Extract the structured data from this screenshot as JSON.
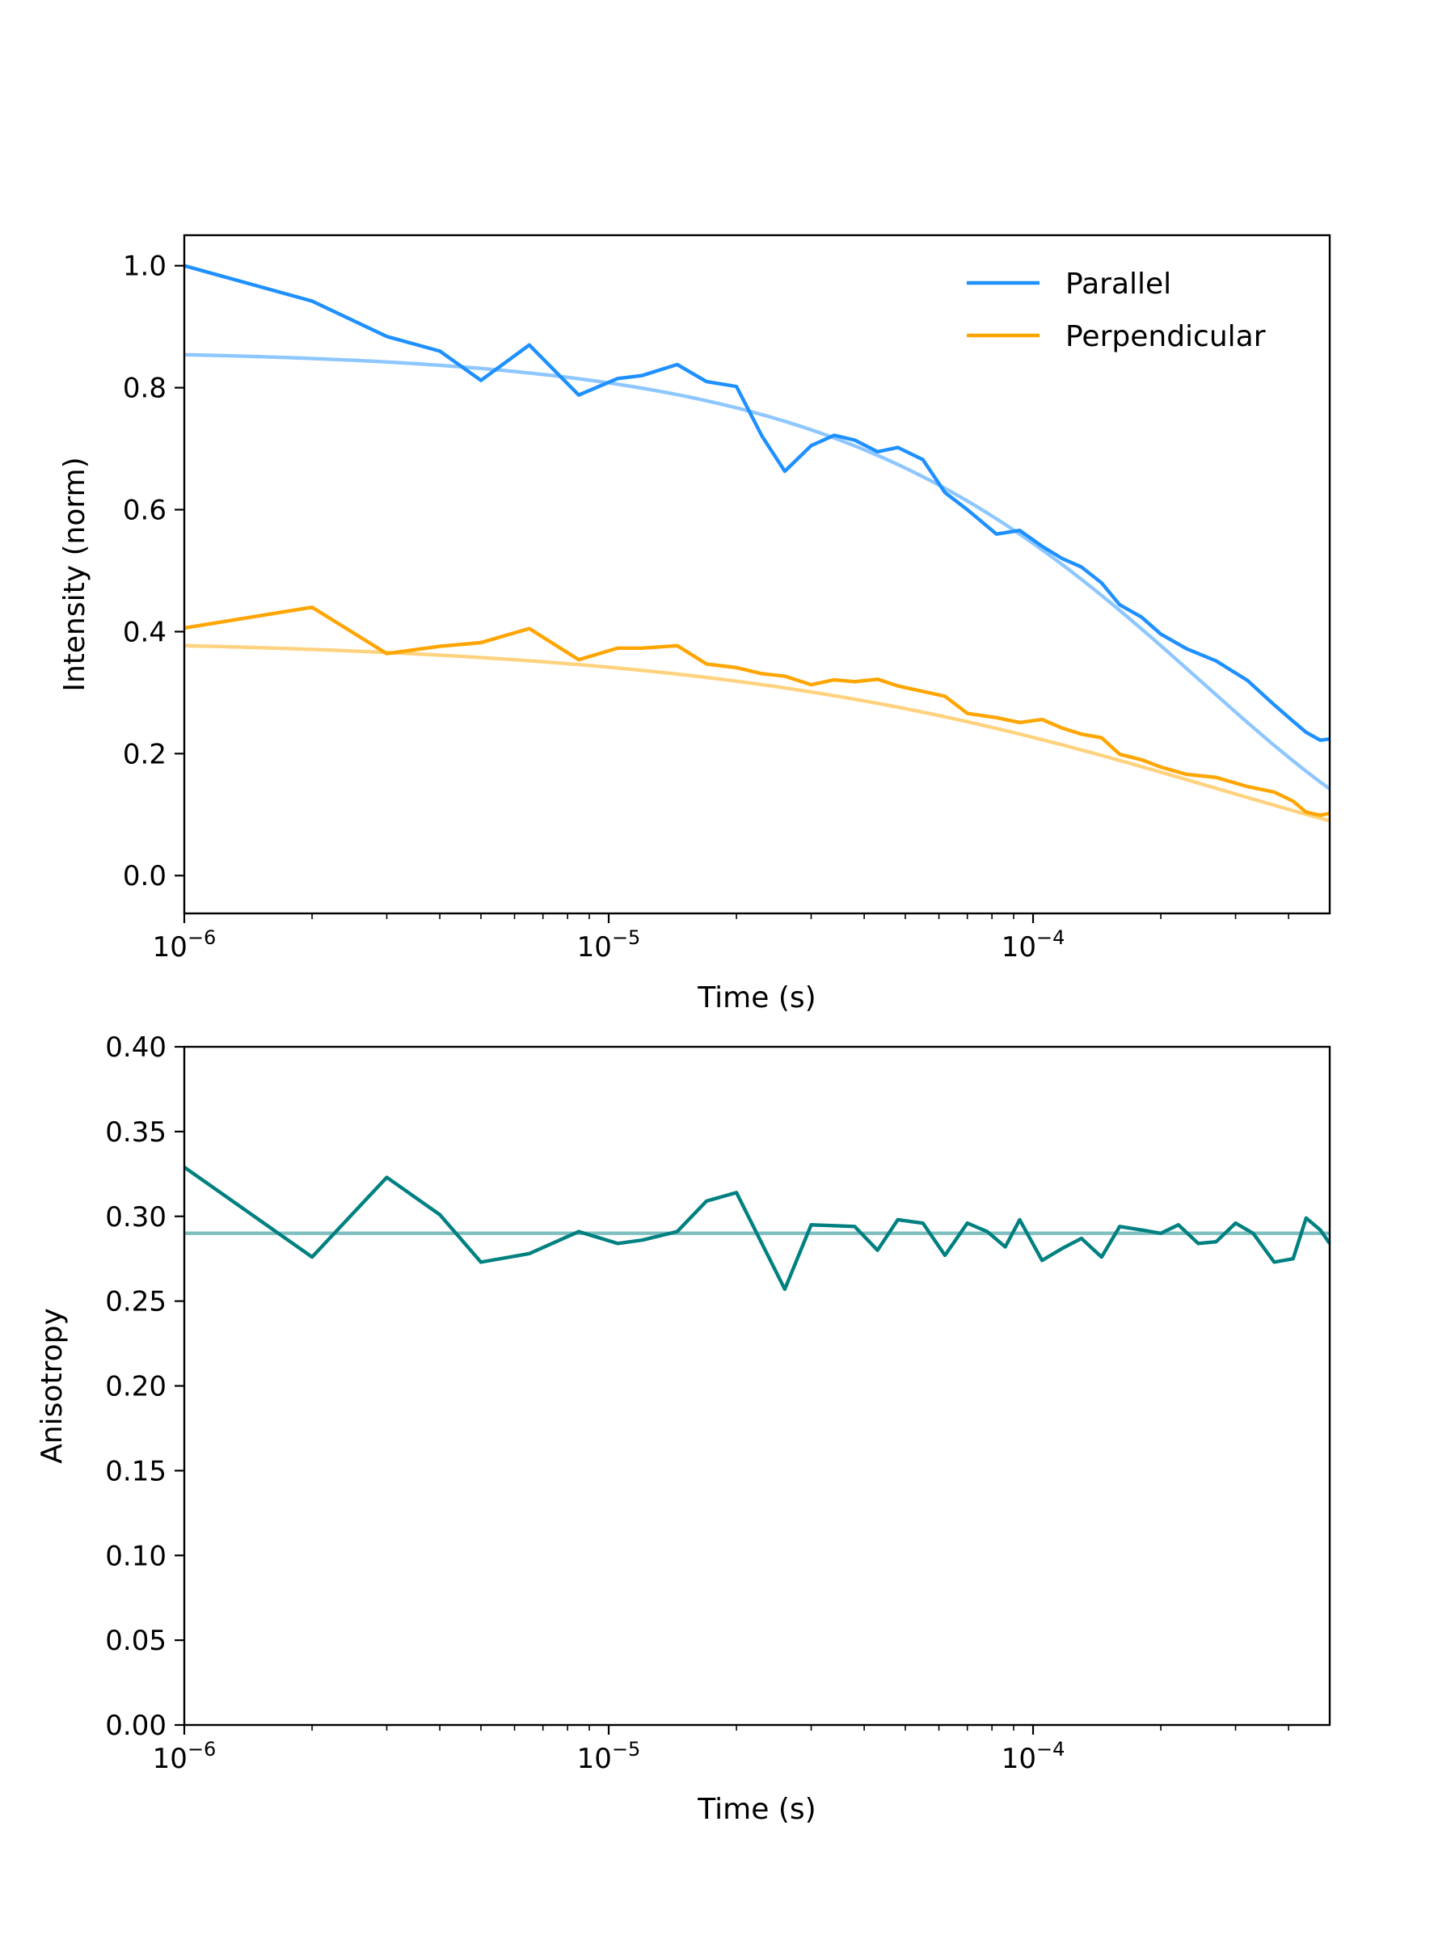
{
  "colors": {
    "parallel": "#1e90ff",
    "perpendicular": "#ffa500",
    "anisotropy": "#008080"
  },
  "chart_data": [
    {
      "type": "line",
      "xlabel": "Time (s)",
      "ylabel": "Intensity (norm)",
      "xscale": "log",
      "xlim": [
        1e-06,
        0.0005
      ],
      "ylim": [
        -0.062,
        1.05
      ],
      "grid": false,
      "legend": {
        "position": "top-right",
        "entries": [
          "Parallel",
          "Perpendicular"
        ]
      },
      "xticks": [
        {
          "value": 1e-06,
          "base": "10",
          "exp": "−6"
        },
        {
          "value": 1e-05,
          "base": "10",
          "exp": "−5"
        },
        {
          "value": 0.0001,
          "base": "10",
          "exp": "−4"
        }
      ],
      "yticks": [
        {
          "value": 0.0,
          "label": "0.0"
        },
        {
          "value": 0.2,
          "label": "0.2"
        },
        {
          "value": 0.4,
          "label": "0.4"
        },
        {
          "value": 0.6,
          "label": "0.6"
        },
        {
          "value": 0.8,
          "label": "0.8"
        },
        {
          "value": 1.0,
          "label": "1.0"
        }
      ],
      "series": [
        {
          "name": "Parallel",
          "color": "#1e90ff",
          "points": [
            [
              1e-06,
              1.0
            ],
            [
              2e-06,
              0.942
            ],
            [
              3e-06,
              0.884
            ],
            [
              4e-06,
              0.86
            ],
            [
              5e-06,
              0.812
            ],
            [
              6.5e-06,
              0.87
            ],
            [
              8.5e-06,
              0.788
            ],
            [
              1.05e-05,
              0.815
            ],
            [
              1.2e-05,
              0.82
            ],
            [
              1.45e-05,
              0.838
            ],
            [
              1.7e-05,
              0.81
            ],
            [
              2e-05,
              0.802
            ],
            [
              2.3e-05,
              0.72
            ],
            [
              2.6e-05,
              0.663
            ],
            [
              3e-05,
              0.705
            ],
            [
              3.4e-05,
              0.722
            ],
            [
              3.8e-05,
              0.714
            ],
            [
              4.3e-05,
              0.695
            ],
            [
              4.8e-05,
              0.702
            ],
            [
              5.5e-05,
              0.682
            ],
            [
              6.2e-05,
              0.628
            ],
            [
              7e-05,
              0.6
            ],
            [
              8.2e-05,
              0.56
            ],
            [
              9.3e-05,
              0.566
            ],
            [
              0.000105,
              0.54
            ],
            [
              0.000117,
              0.52
            ],
            [
              0.00013,
              0.506
            ],
            [
              0.000145,
              0.48
            ],
            [
              0.00016,
              0.444
            ],
            [
              0.00018,
              0.424
            ],
            [
              0.0002,
              0.396
            ],
            [
              0.00023,
              0.372
            ],
            [
              0.00027,
              0.352
            ],
            [
              0.00032,
              0.32
            ],
            [
              0.00037,
              0.28
            ],
            [
              0.00041,
              0.253
            ],
            [
              0.00044,
              0.235
            ],
            [
              0.000475,
              0.222
            ],
            [
              0.0005,
              0.224
            ]
          ],
          "fit": {
            "amplitude": 0.862,
            "tau": 0.00025,
            "beta": 0.85
          }
        },
        {
          "name": "Perpendicular",
          "color": "#ffa500",
          "points": [
            [
              1e-06,
              0.406
            ],
            [
              2e-06,
              0.44
            ],
            [
              3e-06,
              0.364
            ],
            [
              4e-06,
              0.376
            ],
            [
              5e-06,
              0.382
            ],
            [
              6.5e-06,
              0.405
            ],
            [
              8.5e-06,
              0.354
            ],
            [
              1.05e-05,
              0.373
            ],
            [
              1.2e-05,
              0.373
            ],
            [
              1.45e-05,
              0.377
            ],
            [
              1.7e-05,
              0.347
            ],
            [
              2e-05,
              0.341
            ],
            [
              2.3e-05,
              0.331
            ],
            [
              2.6e-05,
              0.327
            ],
            [
              3e-05,
              0.313
            ],
            [
              3.4e-05,
              0.321
            ],
            [
              3.8e-05,
              0.318
            ],
            [
              4.3e-05,
              0.322
            ],
            [
              4.8e-05,
              0.311
            ],
            [
              5.5e-05,
              0.302
            ],
            [
              6.2e-05,
              0.294
            ],
            [
              7e-05,
              0.266
            ],
            [
              8.2e-05,
              0.259
            ],
            [
              9.3e-05,
              0.251
            ],
            [
              0.000105,
              0.256
            ],
            [
              0.000117,
              0.242
            ],
            [
              0.00013,
              0.232
            ],
            [
              0.000145,
              0.226
            ],
            [
              0.00016,
              0.199
            ],
            [
              0.00018,
              0.19
            ],
            [
              0.0002,
              0.178
            ],
            [
              0.00023,
              0.166
            ],
            [
              0.00027,
              0.161
            ],
            [
              0.00032,
              0.146
            ],
            [
              0.00037,
              0.137
            ],
            [
              0.00041,
              0.122
            ],
            [
              0.00044,
              0.104
            ],
            [
              0.000475,
              0.099
            ],
            [
              0.0005,
              0.102
            ]
          ],
          "fit": {
            "amplitude": 0.389,
            "tau": 0.00027,
            "beta": 0.62
          }
        }
      ]
    },
    {
      "type": "line",
      "xlabel": "Time (s)",
      "ylabel": "Anisotropy",
      "xscale": "log",
      "xlim": [
        1e-06,
        0.0005
      ],
      "ylim": [
        0.0,
        0.4
      ],
      "grid": false,
      "xticks": [
        {
          "value": 1e-06,
          "base": "10",
          "exp": "−6"
        },
        {
          "value": 1e-05,
          "base": "10",
          "exp": "−5"
        },
        {
          "value": 0.0001,
          "base": "10",
          "exp": "−4"
        }
      ],
      "yticks": [
        {
          "value": 0.0,
          "label": "0.00"
        },
        {
          "value": 0.05,
          "label": "0.05"
        },
        {
          "value": 0.1,
          "label": "0.10"
        },
        {
          "value": 0.15,
          "label": "0.15"
        },
        {
          "value": 0.2,
          "label": "0.20"
        },
        {
          "value": 0.25,
          "label": "0.25"
        },
        {
          "value": 0.3,
          "label": "0.30"
        },
        {
          "value": 0.35,
          "label": "0.35"
        },
        {
          "value": 0.4,
          "label": "0.40"
        }
      ],
      "series": [
        {
          "color": "#008080",
          "points": [
            [
              1e-06,
              0.329
            ],
            [
              2e-06,
              0.276
            ],
            [
              3e-06,
              0.323
            ],
            [
              4e-06,
              0.301
            ],
            [
              5e-06,
              0.273
            ],
            [
              6.5e-06,
              0.278
            ],
            [
              8.5e-06,
              0.291
            ],
            [
              1.05e-05,
              0.284
            ],
            [
              1.2e-05,
              0.286
            ],
            [
              1.45e-05,
              0.291
            ],
            [
              1.7e-05,
              0.309
            ],
            [
              2e-05,
              0.314
            ],
            [
              2.6e-05,
              0.257
            ],
            [
              3e-05,
              0.295
            ],
            [
              3.8e-05,
              0.294
            ],
            [
              4.3e-05,
              0.28
            ],
            [
              4.8e-05,
              0.298
            ],
            [
              5.5e-05,
              0.296
            ],
            [
              6.2e-05,
              0.277
            ],
            [
              7e-05,
              0.296
            ],
            [
              7.8e-05,
              0.291
            ],
            [
              8.6e-05,
              0.282
            ],
            [
              9.3e-05,
              0.298
            ],
            [
              0.000105,
              0.274
            ],
            [
              0.000117,
              0.281
            ],
            [
              0.00013,
              0.287
            ],
            [
              0.000145,
              0.276
            ],
            [
              0.00016,
              0.294
            ],
            [
              0.00018,
              0.292
            ],
            [
              0.0002,
              0.29
            ],
            [
              0.00022,
              0.295
            ],
            [
              0.000245,
              0.284
            ],
            [
              0.00027,
              0.285
            ],
            [
              0.0003,
              0.296
            ],
            [
              0.00033,
              0.29
            ],
            [
              0.00037,
              0.273
            ],
            [
              0.00041,
              0.275
            ],
            [
              0.00044,
              0.299
            ],
            [
              0.000475,
              0.292
            ],
            [
              0.0005,
              0.284
            ]
          ],
          "fit_constant": 0.29
        }
      ]
    }
  ]
}
